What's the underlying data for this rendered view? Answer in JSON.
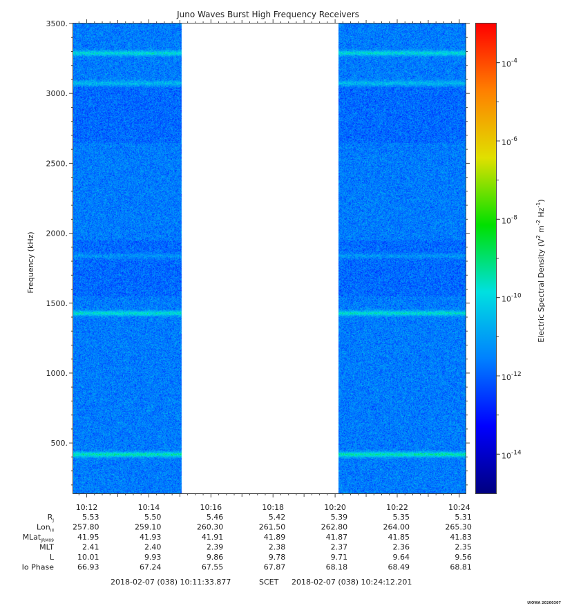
{
  "chart_data": {
    "type": "heatmap",
    "title": "Juno Waves Burst High Frequency Receivers",
    "ylabel": "Frequency (kHz)",
    "ylim": [
      140,
      3500
    ],
    "y_ticks": [
      "500.",
      "1000.",
      "1500.",
      "2000.",
      "2500.",
      "3000.",
      "3500."
    ],
    "y_tick_values": [
      500,
      1000,
      1500,
      2000,
      2500,
      3000,
      3500
    ],
    "x_ticks": [
      "10:12",
      "10:14",
      "10:16",
      "10:18",
      "10:20",
      "10:22",
      "10:24"
    ],
    "x_tick_minutes": [
      12,
      14,
      16,
      18,
      20,
      22,
      24
    ],
    "xlim_minutes": [
      11.565,
      24.203
    ],
    "data_gaps": [
      [
        15.05,
        20.1
      ]
    ],
    "emission_bands_khz": [
      [
        420,
        0.95
      ],
      [
        1430,
        0.8
      ],
      [
        3290,
        0.75
      ],
      [
        3075,
        0.45
      ],
      [
        1840,
        0.3
      ]
    ],
    "background_log10": -11.6,
    "colorbar": {
      "label": "Electric Spectral Density (V",
      "label_sup1": "2",
      "label_mid": " m",
      "label_sup2": "-2",
      "label_mid2": " Hz",
      "label_sup3": "-1",
      "label_end": ")",
      "log_min": -15,
      "log_max": -3,
      "tick_base": "10",
      "tick_exponents": [
        "-4",
        "-6",
        "-8",
        "-10",
        "-12",
        "-14"
      ],
      "tick_values": [
        -4,
        -6,
        -8,
        -10,
        -12,
        -14
      ],
      "colors": [
        "#000080",
        "#0000ff",
        "#0080ff",
        "#00e0e0",
        "#00e000",
        "#e0e000",
        "#ff8000",
        "#ff0000"
      ]
    },
    "ephemeris": {
      "rows": [
        {
          "label": "R",
          "sub": "J",
          "values": [
            "5.53",
            "5.50",
            "5.46",
            "5.42",
            "5.39",
            "5.35",
            "5.31"
          ]
        },
        {
          "label": "Lon",
          "sub": "III",
          "values": [
            "257.80",
            "259.10",
            "260.30",
            "261.50",
            "262.80",
            "264.00",
            "265.30"
          ]
        },
        {
          "label": "MLat",
          "sub": "JRM09",
          "values": [
            "41.95",
            "41.93",
            "41.91",
            "41.89",
            "41.87",
            "41.85",
            "41.83"
          ]
        },
        {
          "label": "MLT",
          "sub": "",
          "values": [
            "2.41",
            "2.40",
            "2.39",
            "2.38",
            "2.37",
            "2.36",
            "2.35"
          ]
        },
        {
          "label": "L",
          "sub": "",
          "values": [
            "10.01",
            "9.93",
            "9.86",
            "9.78",
            "9.71",
            "9.64",
            "9.56"
          ]
        },
        {
          "label": "Io Phase",
          "sub": "",
          "values": [
            "66.93",
            "67.24",
            "67.55",
            "67.87",
            "68.18",
            "68.49",
            "68.81"
          ]
        }
      ]
    },
    "time_range": {
      "start": "2018-02-07 (038) 10:11:33.877",
      "label": "SCET",
      "end": "2018-02-07 (038) 10:24:12.201"
    },
    "credit": "UIOWA 20200307"
  }
}
